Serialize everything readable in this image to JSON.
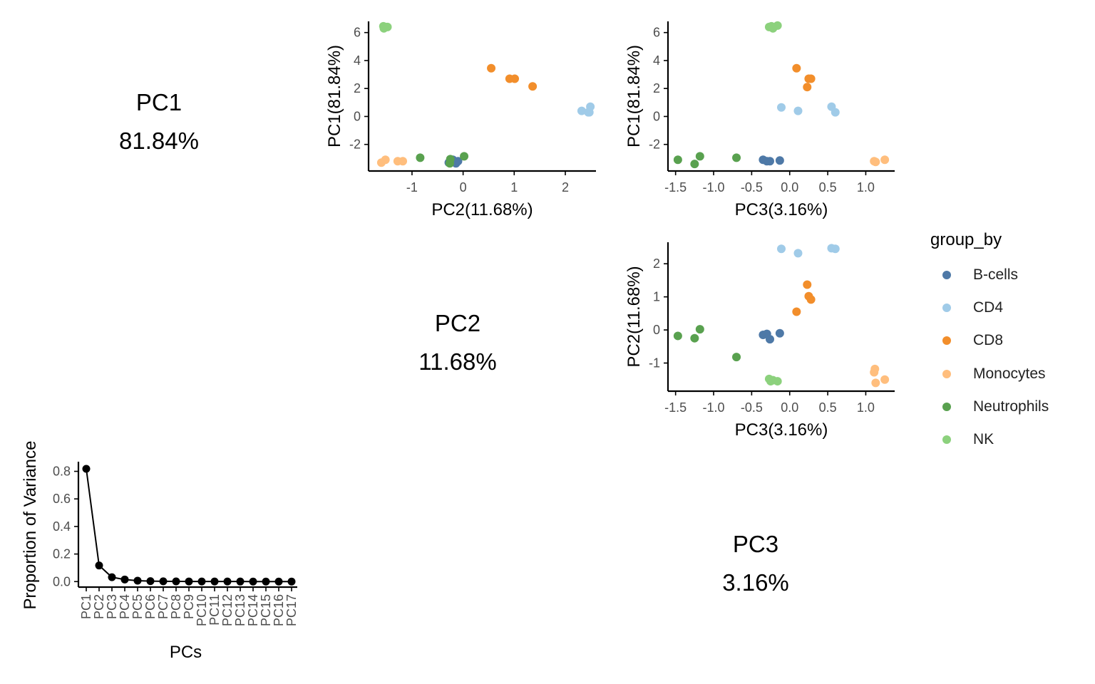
{
  "colors": {
    "B-cells": "#4e79a7",
    "CD4": "#a0cbe8",
    "CD8": "#f28e2b",
    "Monocytes": "#ffbe7d",
    "Neutrophils": "#59a14f",
    "NK": "#8cd17d",
    "axis": "#000000",
    "tick_text": "#4d4d4d"
  },
  "diagonal": [
    {
      "label": "PC1",
      "percent": "81.84%"
    },
    {
      "label": "PC2",
      "percent": "11.68%"
    },
    {
      "label": "PC3",
      "percent": "3.16%"
    }
  ],
  "legend": {
    "title": "group_by",
    "items": [
      "B-cells",
      "CD4",
      "CD8",
      "Monocytes",
      "Neutrophils",
      "NK"
    ]
  },
  "chart_data": [
    {
      "type": "scatter",
      "xlabel": "PC2(11.68%)",
      "ylabel": "PC1(81.84%)",
      "xlim": [
        -1.85,
        2.6
      ],
      "ylim": [
        -3.9,
        6.8
      ],
      "xticks": [
        -1,
        0,
        1,
        2
      ],
      "xtick_labels": [
        "-1",
        "0",
        "1",
        "2"
      ],
      "yticks": [
        -2,
        0,
        2,
        4,
        6
      ],
      "ytick_labels": [
        "-2",
        "0",
        "2",
        "4",
        "6"
      ],
      "grid": false,
      "series": [
        {
          "name": "B-cells",
          "x": [
            -0.28,
            -0.2,
            -0.14,
            -0.1,
            -0.25
          ],
          "y": [
            -3.3,
            -3.1,
            -3.35,
            -3.2,
            -3.15
          ]
        },
        {
          "name": "CD4",
          "x": [
            2.32,
            2.45,
            2.47,
            2.49
          ],
          "y": [
            0.4,
            0.3,
            0.3,
            0.7
          ]
        },
        {
          "name": "CD8",
          "x": [
            0.55,
            0.91,
            1.01,
            1.36
          ],
          "y": [
            3.45,
            2.7,
            2.7,
            2.15
          ]
        },
        {
          "name": "Monocytes",
          "x": [
            -1.6,
            -1.52,
            -1.28,
            -1.18
          ],
          "y": [
            -3.3,
            -3.1,
            -3.2,
            -3.2
          ]
        },
        {
          "name": "Neutrophils",
          "x": [
            -0.84,
            -0.26,
            0.02,
            -0.25
          ],
          "y": [
            -2.95,
            -3.35,
            -2.85,
            -3.05
          ]
        },
        {
          "name": "NK",
          "x": [
            -1.56,
            -1.52,
            -1.48,
            -1.55
          ],
          "y": [
            6.45,
            6.4,
            6.4,
            6.3
          ]
        }
      ]
    },
    {
      "type": "scatter",
      "xlabel": "PC3(3.16%)",
      "ylabel": "PC1(81.84%)",
      "xlim": [
        -1.6,
        1.38
      ],
      "ylim": [
        -3.9,
        6.8
      ],
      "xticks": [
        -1.5,
        -1.0,
        -0.5,
        0.0,
        0.5,
        1.0
      ],
      "xtick_labels": [
        "-1.5",
        "-1.0",
        "-0.5",
        "0.0",
        "0.5",
        "1.0"
      ],
      "yticks": [
        -2,
        0,
        2,
        4,
        6
      ],
      "ytick_labels": [
        "-2",
        "0",
        "2",
        "4",
        "6"
      ],
      "grid": false,
      "series": [
        {
          "name": "B-cells",
          "x": [
            -0.35,
            -0.3,
            -0.26,
            -0.13
          ],
          "y": [
            -3.1,
            -3.2,
            -3.2,
            -3.15
          ]
        },
        {
          "name": "CD4",
          "x": [
            -0.11,
            0.11,
            0.55,
            0.6
          ],
          "y": [
            0.65,
            0.4,
            0.7,
            0.3
          ]
        },
        {
          "name": "CD8",
          "x": [
            0.09,
            0.23,
            0.25,
            0.28
          ],
          "y": [
            3.45,
            2.1,
            2.7,
            2.7
          ]
        },
        {
          "name": "Monocytes",
          "x": [
            1.11,
            1.13,
            1.25
          ],
          "y": [
            -3.2,
            -3.25,
            -3.1
          ]
        },
        {
          "name": "Neutrophils",
          "x": [
            -1.47,
            -1.25,
            -1.18,
            -0.7
          ],
          "y": [
            -3.1,
            -3.4,
            -2.85,
            -2.95
          ]
        },
        {
          "name": "NK",
          "x": [
            -0.27,
            -0.22,
            -0.16,
            -0.24
          ],
          "y": [
            6.4,
            6.3,
            6.5,
            6.45
          ]
        }
      ]
    },
    {
      "type": "scatter",
      "xlabel": "PC3(3.16%)",
      "ylabel": "PC2(11.68%)",
      "xlim": [
        -1.6,
        1.38
      ],
      "ylim": [
        -1.85,
        2.65
      ],
      "xticks": [
        -1.5,
        -1.0,
        -0.5,
        0.0,
        0.5,
        1.0
      ],
      "xtick_labels": [
        "-1.5",
        "-1.0",
        "-0.5",
        "0.0",
        "0.5",
        "1.0"
      ],
      "yticks": [
        -1,
        0,
        1,
        2
      ],
      "ytick_labels": [
        "-1",
        "0",
        "1",
        "2"
      ],
      "grid": false,
      "series": [
        {
          "name": "B-cells",
          "x": [
            -0.35,
            -0.3,
            -0.26,
            -0.13
          ],
          "y": [
            -0.15,
            -0.12,
            -0.28,
            -0.1
          ]
        },
        {
          "name": "CD4",
          "x": [
            -0.11,
            0.11,
            0.55,
            0.6
          ],
          "y": [
            2.45,
            2.32,
            2.47,
            2.45
          ]
        },
        {
          "name": "CD8",
          "x": [
            0.09,
            0.23,
            0.25,
            0.28
          ],
          "y": [
            0.55,
            1.37,
            1.02,
            0.92
          ]
        },
        {
          "name": "Monocytes",
          "x": [
            1.11,
            1.12,
            1.13,
            1.25
          ],
          "y": [
            -1.28,
            -1.18,
            -1.6,
            -1.5
          ]
        },
        {
          "name": "Neutrophils",
          "x": [
            -1.47,
            -1.25,
            -1.18,
            -0.7
          ],
          "y": [
            -0.18,
            -0.25,
            0.02,
            -0.82
          ]
        },
        {
          "name": "NK",
          "x": [
            -0.27,
            -0.22,
            -0.16,
            -0.25
          ],
          "y": [
            -1.48,
            -1.52,
            -1.55,
            -1.55
          ]
        }
      ]
    },
    {
      "type": "line",
      "xlabel": "PCs",
      "ylabel": "Proportion of Variance",
      "categories": [
        "PC1",
        "PC2",
        "PC3",
        "PC4",
        "PC5",
        "PC6",
        "PC7",
        "PC8",
        "PC9",
        "PC10",
        "PC11",
        "PC12",
        "PC13",
        "PC14",
        "PC15",
        "PC16",
        "PC17"
      ],
      "values": [
        0.8184,
        0.1168,
        0.0316,
        0.0152,
        0.0068,
        0.0035,
        0.002,
        0.0014,
        0.001,
        0.0008,
        0.0006,
        0.0005,
        0.0004,
        0.0003,
        0.0003,
        0.0002,
        0.0002
      ],
      "ylim": [
        -0.04,
        0.87
      ],
      "yticks": [
        0.0,
        0.2,
        0.4,
        0.6,
        0.8
      ],
      "ytick_labels": [
        "0.0",
        "0.2",
        "0.4",
        "0.6",
        "0.8"
      ],
      "grid": false
    }
  ]
}
